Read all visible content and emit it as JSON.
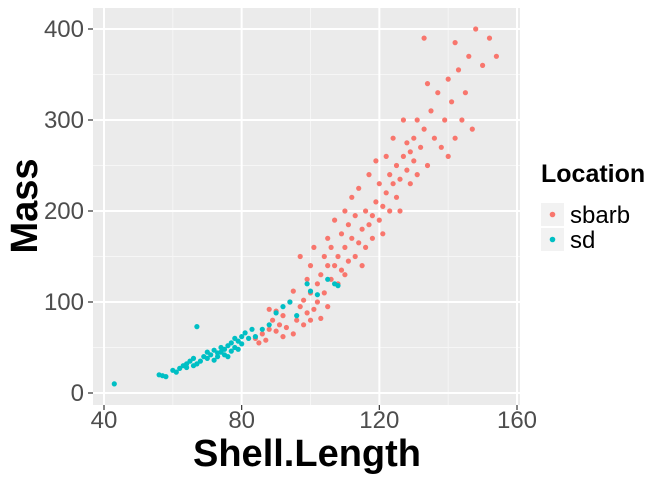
{
  "chart_data": {
    "type": "scatter",
    "title": "",
    "xlabel": "Shell.Length",
    "ylabel": "Mass",
    "xlim": [
      40,
      160
    ],
    "ylim": [
      0,
      420
    ],
    "xticks": [
      40,
      80,
      120,
      160
    ],
    "yticks": [
      0,
      100,
      200,
      300,
      400
    ],
    "grid": true,
    "legend": {
      "title": "Location",
      "position": "right",
      "entries": [
        {
          "name": "sbarb",
          "color": "#F8766D"
        },
        {
          "name": "sd",
          "color": "#00BFC4"
        }
      ]
    },
    "series": [
      {
        "name": "sbarb",
        "color": "#F8766D",
        "points": [
          [
            84,
            60
          ],
          [
            85,
            55
          ],
          [
            86,
            65
          ],
          [
            87,
            58
          ],
          [
            88,
            70
          ],
          [
            88,
            92
          ],
          [
            89,
            80
          ],
          [
            90,
            68
          ],
          [
            90,
            90
          ],
          [
            91,
            75
          ],
          [
            92,
            62
          ],
          [
            92,
            85
          ],
          [
            93,
            72
          ],
          [
            94,
            100
          ],
          [
            95,
            65
          ],
          [
            95,
            112
          ],
          [
            96,
            80
          ],
          [
            97,
            95
          ],
          [
            97,
            150
          ],
          [
            98,
            75
          ],
          [
            98,
            102
          ],
          [
            99,
            88
          ],
          [
            99,
            125
          ],
          [
            100,
            80
          ],
          [
            100,
            110
          ],
          [
            100,
            140
          ],
          [
            101,
            92
          ],
          [
            101,
            160
          ],
          [
            102,
            120
          ],
          [
            102,
            100
          ],
          [
            103,
            130
          ],
          [
            103,
            82
          ],
          [
            104,
            150
          ],
          [
            104,
            110
          ],
          [
            105,
            140
          ],
          [
            105,
            170
          ],
          [
            105,
            95
          ],
          [
            106,
            125
          ],
          [
            106,
            160
          ],
          [
            107,
            140
          ],
          [
            107,
            190
          ],
          [
            108,
            120
          ],
          [
            108,
            150
          ],
          [
            109,
            175
          ],
          [
            109,
            135
          ],
          [
            110,
            160
          ],
          [
            110,
            200
          ],
          [
            110,
            130
          ],
          [
            111,
            145
          ],
          [
            111,
            185
          ],
          [
            112,
            170
          ],
          [
            112,
            215
          ],
          [
            113,
            150
          ],
          [
            113,
            195
          ],
          [
            114,
            165
          ],
          [
            114,
            225
          ],
          [
            115,
            180
          ],
          [
            115,
            140
          ],
          [
            116,
            200
          ],
          [
            116,
            160
          ],
          [
            117,
            185
          ],
          [
            117,
            240
          ],
          [
            118,
            195
          ],
          [
            118,
            170
          ],
          [
            119,
            210
          ],
          [
            119,
            255
          ],
          [
            120,
            190
          ],
          [
            120,
            230
          ],
          [
            121,
            205
          ],
          [
            121,
            175
          ],
          [
            122,
            220
          ],
          [
            122,
            260
          ],
          [
            123,
            200
          ],
          [
            123,
            240
          ],
          [
            124,
            230
          ],
          [
            124,
            280
          ],
          [
            125,
            215
          ],
          [
            125,
            250
          ],
          [
            126,
            235
          ],
          [
            126,
            200
          ],
          [
            127,
            260
          ],
          [
            127,
            300
          ],
          [
            128,
            245
          ],
          [
            128,
            275
          ],
          [
            129,
            230
          ],
          [
            129,
            265
          ],
          [
            130,
            280
          ],
          [
            130,
            255
          ],
          [
            131,
            300
          ],
          [
            131,
            240
          ],
          [
            132,
            270
          ],
          [
            133,
            390
          ],
          [
            133,
            290
          ],
          [
            134,
            340
          ],
          [
            134,
            250
          ],
          [
            135,
            310
          ],
          [
            136,
            280
          ],
          [
            137,
            330
          ],
          [
            138,
            270
          ],
          [
            139,
            300
          ],
          [
            140,
            345
          ],
          [
            140,
            260
          ],
          [
            141,
            320
          ],
          [
            142,
            385
          ],
          [
            142,
            280
          ],
          [
            143,
            355
          ],
          [
            144,
            300
          ],
          [
            145,
            330
          ],
          [
            146,
            370
          ],
          [
            147,
            290
          ],
          [
            148,
            400
          ],
          [
            150,
            360
          ],
          [
            152,
            390
          ],
          [
            154,
            370
          ]
        ]
      },
      {
        "name": "sd",
        "color": "#00BFC4",
        "points": [
          [
            43,
            10
          ],
          [
            56,
            20
          ],
          [
            57,
            19
          ],
          [
            58,
            18
          ],
          [
            60,
            25
          ],
          [
            61,
            23
          ],
          [
            62,
            27
          ],
          [
            63,
            30
          ],
          [
            64,
            32
          ],
          [
            64,
            28
          ],
          [
            65,
            35
          ],
          [
            66,
            30
          ],
          [
            66,
            38
          ],
          [
            67,
            32
          ],
          [
            67,
            73
          ],
          [
            68,
            35
          ],
          [
            69,
            40
          ],
          [
            70,
            38
          ],
          [
            70,
            45
          ],
          [
            71,
            42
          ],
          [
            72,
            36
          ],
          [
            72,
            47
          ],
          [
            73,
            44
          ],
          [
            73,
            40
          ],
          [
            74,
            50
          ],
          [
            74,
            45
          ],
          [
            75,
            48
          ],
          [
            75,
            42
          ],
          [
            76,
            52
          ],
          [
            76,
            40
          ],
          [
            77,
            55
          ],
          [
            77,
            46
          ],
          [
            78,
            50
          ],
          [
            78,
            60
          ],
          [
            79,
            48
          ],
          [
            79,
            57
          ],
          [
            80,
            62
          ],
          [
            80,
            54
          ],
          [
            81,
            66
          ],
          [
            82,
            60
          ],
          [
            83,
            70
          ],
          [
            84,
            62
          ],
          [
            86,
            70
          ],
          [
            88,
            75
          ],
          [
            90,
            88
          ],
          [
            92,
            95
          ],
          [
            94,
            100
          ],
          [
            96,
            85
          ],
          [
            99,
            120
          ],
          [
            100,
            112
          ],
          [
            102,
            108
          ],
          [
            105,
            125
          ],
          [
            107,
            120
          ],
          [
            108,
            118
          ]
        ]
      }
    ]
  }
}
